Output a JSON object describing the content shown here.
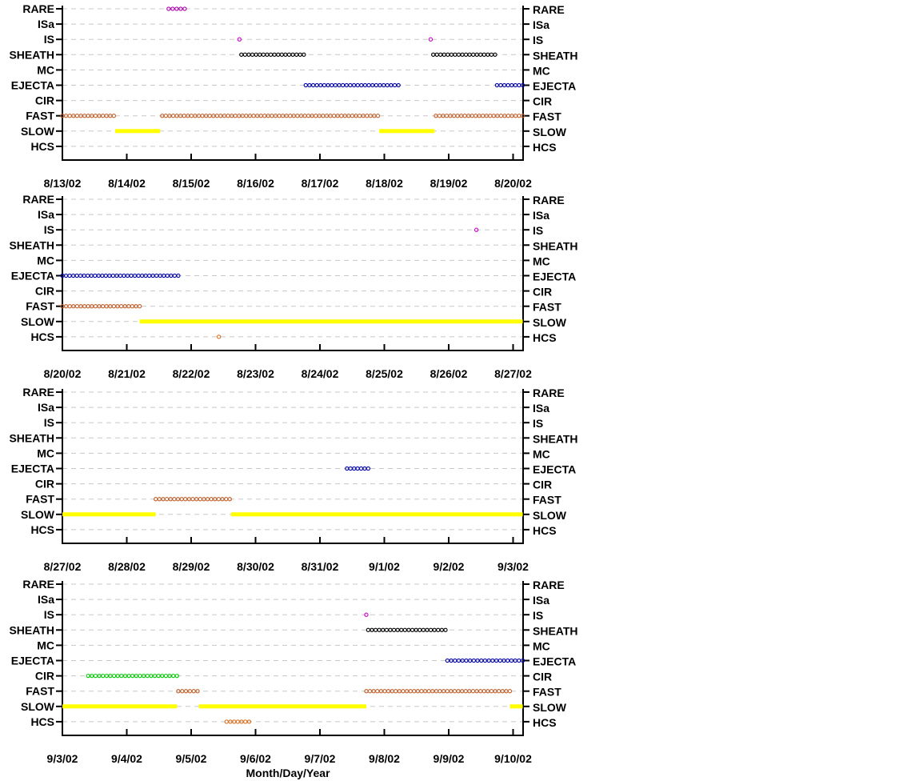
{
  "chart_data": {
    "type": "scatter",
    "xlabel": "Month/Day/Year",
    "categories": [
      "RARE",
      "ISa",
      "IS",
      "SHEATH",
      "MC",
      "EJECTA",
      "CIR",
      "FAST",
      "SLOW",
      "HCS"
    ],
    "colors": {
      "RARE": "#aa00aa",
      "IS": "#cc00cc",
      "SHEATH": "#000000",
      "EJECTA": "#0000aa",
      "CIR": "#00cc00",
      "FAST": "#c0602a",
      "SLOW": "#ffff00",
      "HCS": "#d8701c"
    },
    "panels": [
      {
        "date_labels": [
          "8/13/02",
          "8/14/02",
          "8/15/02",
          "8/16/02",
          "8/17/02",
          "8/18/02",
          "8/19/02",
          "8/20/02"
        ],
        "segments": [
          {
            "category": "RARE",
            "start": 1.65,
            "end": 1.9
          },
          {
            "category": "IS",
            "start": 2.75,
            "end": 2.75
          },
          {
            "category": "IS",
            "start": 5.72,
            "end": 5.72
          },
          {
            "category": "SHEATH",
            "start": 2.78,
            "end": 3.75
          },
          {
            "category": "SHEATH",
            "start": 5.76,
            "end": 6.72
          },
          {
            "category": "EJECTA",
            "start": 3.78,
            "end": 5.22
          },
          {
            "category": "EJECTA",
            "start": 6.75,
            "end": 7.15
          },
          {
            "category": "FAST",
            "start": 0.0,
            "end": 0.8
          },
          {
            "category": "FAST",
            "start": 1.55,
            "end": 4.9
          },
          {
            "category": "FAST",
            "start": 5.8,
            "end": 7.15
          },
          {
            "category": "SLOW",
            "start": 0.82,
            "end": 1.52
          },
          {
            "category": "SLOW",
            "start": 4.92,
            "end": 5.78
          }
        ]
      },
      {
        "date_labels": [
          "8/20/02",
          "8/21/02",
          "8/22/02",
          "8/23/02",
          "8/24/02",
          "8/25/02",
          "8/26/02",
          "8/27/02"
        ],
        "segments": [
          {
            "category": "IS",
            "start": 6.43,
            "end": 6.43
          },
          {
            "category": "EJECTA",
            "start": 0.0,
            "end": 1.8
          },
          {
            "category": "FAST",
            "start": 0.0,
            "end": 1.2
          },
          {
            "category": "SLOW",
            "start": 1.2,
            "end": 7.15
          },
          {
            "category": "HCS",
            "start": 2.43,
            "end": 2.43
          }
        ]
      },
      {
        "date_labels": [
          "8/27/02",
          "8/28/02",
          "8/29/02",
          "8/30/02",
          "8/31/02",
          "9/1/02",
          "9/2/02",
          "9/3/02"
        ],
        "segments": [
          {
            "category": "EJECTA",
            "start": 4.42,
            "end": 4.75
          },
          {
            "category": "FAST",
            "start": 1.45,
            "end": 2.6
          },
          {
            "category": "SLOW",
            "start": 0.0,
            "end": 1.45
          },
          {
            "category": "SLOW",
            "start": 2.62,
            "end": 7.15
          }
        ]
      },
      {
        "date_labels": [
          "9/3/02",
          "9/4/02",
          "9/5/02",
          "9/6/02",
          "9/7/02",
          "9/8/02",
          "9/9/02",
          "9/10/02"
        ],
        "segments": [
          {
            "category": "IS",
            "start": 4.72,
            "end": 4.72
          },
          {
            "category": "SHEATH",
            "start": 4.75,
            "end": 5.95
          },
          {
            "category": "EJECTA",
            "start": 5.98,
            "end": 7.15
          },
          {
            "category": "CIR",
            "start": 0.4,
            "end": 1.78
          },
          {
            "category": "FAST",
            "start": 1.8,
            "end": 2.1
          },
          {
            "category": "FAST",
            "start": 4.72,
            "end": 6.95
          },
          {
            "category": "SLOW",
            "start": 0.0,
            "end": 1.78
          },
          {
            "category": "SLOW",
            "start": 2.12,
            "end": 4.72
          },
          {
            "category": "SLOW",
            "start": 6.95,
            "end": 7.15
          },
          {
            "category": "HCS",
            "start": 2.55,
            "end": 2.9
          }
        ]
      }
    ]
  }
}
